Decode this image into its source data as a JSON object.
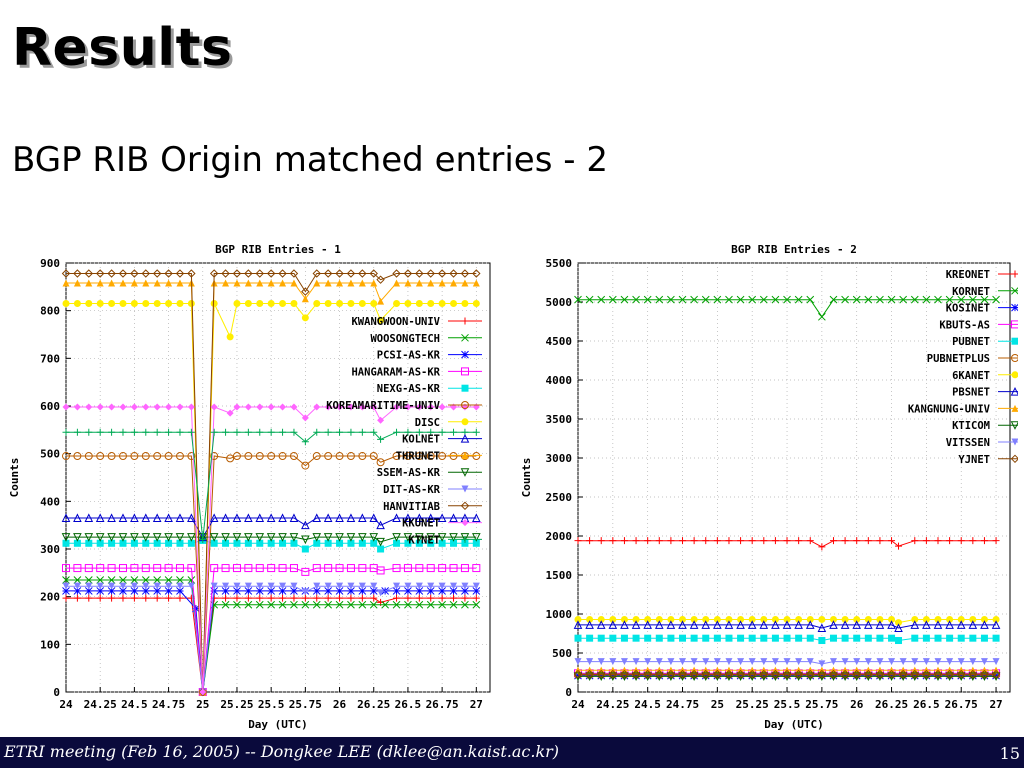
{
  "slide": {
    "title": "Results",
    "subtitle": "BGP RIB Origin matched entries - 2",
    "footer": "ETRI meeting (Feb 16, 2005) -- Dongkee LEE (dklee@an.kaist.ac.kr)",
    "page_number": "15"
  },
  "chart_data": [
    {
      "type": "line",
      "title": "BGP RIB Entries - 1",
      "xlabel": "Day (UTC)",
      "ylabel": "Counts",
      "xlim": [
        24,
        27.1
      ],
      "ylim": [
        0,
        900
      ],
      "x_ticks": [
        24,
        24.25,
        24.5,
        24.75,
        25,
        25.25,
        25.5,
        25.75,
        26,
        26.25,
        26.5,
        26.75,
        27
      ],
      "x_tick_labels": [
        "24",
        "24.25",
        "24.5",
        "24.75",
        "25",
        "25.25",
        "25.5",
        "25.75",
        "26",
        "26.25",
        "26.5",
        "26.75",
        "27"
      ],
      "y_ticks": [
        0,
        100,
        200,
        300,
        400,
        500,
        600,
        700,
        800,
        900
      ],
      "grid": true,
      "legend_position": "top-right",
      "series": [
        {
          "name": "KWANGWOON-UNIV",
          "base": 197,
          "marker": "plus",
          "color": "#ff0000",
          "dips": [
            [
              25.0,
              0
            ],
            [
              26.3,
              188
            ]
          ]
        },
        {
          "name": "WOOSONGTECH",
          "base": 235,
          "marker": "x",
          "color": "#00a000",
          "dips": [
            [
              25.0,
              0
            ]
          ],
          "after": 183
        },
        {
          "name": "PCSI-AS-KR",
          "base": 212,
          "marker": "star",
          "color": "#0000ff",
          "dips": [
            [
              24.95,
              175
            ],
            [
              25.0,
              0
            ]
          ]
        },
        {
          "name": "HANGARAM-AS-KR",
          "base": 260,
          "marker": "square",
          "color": "#ff00ff",
          "dips": [
            [
              25.0,
              0
            ],
            [
              25.75,
              252
            ],
            [
              26.3,
              255
            ]
          ]
        },
        {
          "name": "NEXG-AS-KR",
          "base": 312,
          "marker": "filled-square",
          "color": "#00e5e5",
          "dips": [
            [
              25.0,
              318
            ],
            [
              25.75,
              300
            ],
            [
              26.3,
              300
            ]
          ]
        },
        {
          "name": "KOREAMARITIME-UNIV",
          "base": 495,
          "marker": "circle",
          "color": "#b85c00",
          "dips": [
            [
              25.0,
              0
            ],
            [
              25.2,
              490
            ],
            [
              25.75,
              475
            ],
            [
              26.3,
              482
            ]
          ]
        },
        {
          "name": "DISC",
          "base": 815,
          "marker": "filled-circle",
          "color": "#ffee00",
          "dips": [
            [
              25.0,
              0
            ],
            [
              25.2,
              745
            ],
            [
              25.75,
              785
            ],
            [
              26.3,
              780
            ]
          ]
        },
        {
          "name": "KOLNET",
          "base": 365,
          "marker": "triangle",
          "color": "#0000cc",
          "dips": [
            [
              25.0,
              325
            ],
            [
              25.75,
              350
            ],
            [
              26.3,
              350
            ]
          ]
        },
        {
          "name": "THRUNET",
          "base": 858,
          "marker": "filled-triangle",
          "color": "#ffaa00",
          "dips": [
            [
              25.0,
              0
            ],
            [
              25.75,
              825
            ],
            [
              26.3,
              820
            ]
          ]
        },
        {
          "name": "SSEM-AS-KR",
          "base": 325,
          "marker": "down-triangle",
          "color": "#006600",
          "dips": [
            [
              25.0,
              325
            ],
            [
              25.75,
              320
            ],
            [
              26.3,
              315
            ]
          ]
        },
        {
          "name": "DIT-AS-KR",
          "base": 222,
          "marker": "filled-down-triangle",
          "color": "#8080ff",
          "dips": [
            [
              25.0,
              0
            ],
            [
              25.75,
              210
            ],
            [
              26.3,
              208
            ]
          ]
        },
        {
          "name": "HANVITIAB",
          "base": 878,
          "marker": "diamond",
          "color": "#884400",
          "dips": [
            [
              25.0,
              0
            ],
            [
              25.75,
              840
            ],
            [
              26.3,
              865
            ]
          ]
        },
        {
          "name": "KKUNET",
          "base": 598,
          "marker": "filled-diamond",
          "color": "#ff66ff",
          "dips": [
            [
              25.0,
              0
            ],
            [
              25.2,
              585
            ],
            [
              25.75,
              575
            ],
            [
              26.3,
              570
            ]
          ]
        },
        {
          "name": "KTNET",
          "base": 545,
          "marker": "plus",
          "color": "#00aa55",
          "dips": [
            [
              25.0,
              320
            ],
            [
              25.75,
              525
            ],
            [
              26.3,
              530
            ]
          ]
        }
      ]
    },
    {
      "type": "line",
      "title": "BGP RIB Entries - 2",
      "xlabel": "Day (UTC)",
      "ylabel": "Counts",
      "xlim": [
        24,
        27.1
      ],
      "ylim": [
        0,
        5500
      ],
      "x_ticks": [
        24,
        24.25,
        24.5,
        24.75,
        25,
        25.25,
        25.5,
        25.75,
        26,
        26.25,
        26.5,
        26.75,
        27
      ],
      "x_tick_labels": [
        "24",
        "24.25",
        "24.5",
        "24.75",
        "25",
        "25.25",
        "25.5",
        "25.75",
        "26",
        "26.25",
        "26.5",
        "26.75",
        "27"
      ],
      "y_ticks": [
        0,
        500,
        1000,
        1500,
        2000,
        2500,
        3000,
        3500,
        4000,
        4500,
        5000,
        5500
      ],
      "grid": true,
      "legend_position": "top-right",
      "series": [
        {
          "name": "KREONET",
          "base": 1940,
          "marker": "plus",
          "color": "#ff0000",
          "dips": [
            [
              25.75,
              1860
            ],
            [
              26.3,
              1870
            ]
          ]
        },
        {
          "name": "KORNET",
          "base": 5030,
          "marker": "x",
          "color": "#00a000",
          "dips": [
            [
              25.75,
              4810
            ]
          ]
        },
        {
          "name": "KOSINET",
          "base": 210,
          "marker": "star",
          "color": "#0000ff",
          "dips": []
        },
        {
          "name": "KBUTS-AS",
          "base": 240,
          "marker": "square",
          "color": "#ff00ff",
          "dips": []
        },
        {
          "name": "PUBNET",
          "base": 690,
          "marker": "filled-square",
          "color": "#00e5e5",
          "dips": [
            [
              25.75,
              660
            ],
            [
              26.3,
              660
            ]
          ]
        },
        {
          "name": "PUBNETPLUS",
          "base": 220,
          "marker": "circle",
          "color": "#b85c00",
          "dips": []
        },
        {
          "name": "6KANET",
          "base": 930,
          "marker": "filled-circle",
          "color": "#ffee00",
          "dips": [
            [
              26.3,
              890
            ]
          ]
        },
        {
          "name": "PBSNET",
          "base": 860,
          "marker": "triangle",
          "color": "#0000cc",
          "dips": [
            [
              25.75,
              820
            ],
            [
              26.3,
              820
            ]
          ]
        },
        {
          "name": "KANGNUNG-UNIV",
          "base": 280,
          "marker": "filled-triangle",
          "color": "#ffaa00",
          "dips": []
        },
        {
          "name": "KTICOM",
          "base": 200,
          "marker": "down-triangle",
          "color": "#006600",
          "dips": []
        },
        {
          "name": "VITSSEN",
          "base": 390,
          "marker": "filled-down-triangle",
          "color": "#8080ff",
          "dips": [
            [
              25.75,
              360
            ]
          ]
        },
        {
          "name": "YJNET",
          "base": 230,
          "marker": "diamond",
          "color": "#884400",
          "dips": []
        }
      ]
    }
  ]
}
